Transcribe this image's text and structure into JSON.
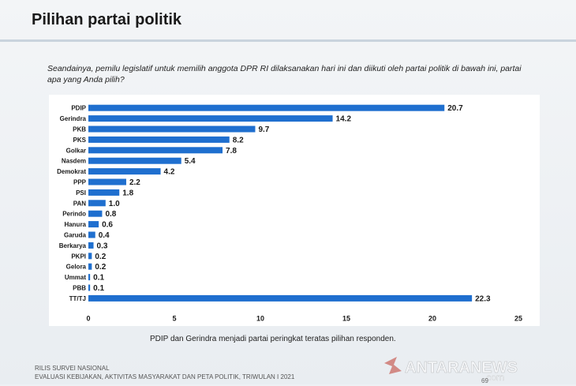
{
  "slide": {
    "title": "Pilihan partai politik",
    "question": "Seandainya, pemilu legislatif untuk memilih anggota DPR RI dilaksanakan hari ini dan diikuti oleh partai politik di bawah ini, partai apa yang Anda pilih?",
    "caption": "PDIP dan Gerindra menjadi partai peringkat teratas pilihan responden.",
    "footer_line1": "RILIS SURVEI NASIONAL",
    "footer_line2": "EVALUASI KEBIJAKAN, AKTIVITAS MASYARAKAT DAN PETA POLITIK, TRIWULAN I 2021",
    "watermark": "ANTARANEWS",
    "watermark_sub": ".com",
    "page_number": "69"
  },
  "colors": {
    "bar": "#1f6fcf",
    "text": "#1a1a1a"
  },
  "chart_data": {
    "type": "bar",
    "orientation": "horizontal",
    "categories": [
      "PDIP",
      "Gerindra",
      "PKB",
      "PKS",
      "Golkar",
      "Nasdem",
      "Demokrat",
      "PPP",
      "PSI",
      "PAN",
      "Perindo",
      "Hanura",
      "Garuda",
      "Berkarya",
      "PKPI",
      "Gelora",
      "Ummat",
      "PBB",
      "TT/TJ"
    ],
    "values": [
      20.7,
      14.2,
      9.7,
      8.2,
      7.8,
      5.4,
      4.2,
      2.2,
      1.8,
      1.0,
      0.8,
      0.6,
      0.4,
      0.3,
      0.2,
      0.2,
      0.1,
      0.1,
      22.3
    ],
    "value_labels": [
      "20.7",
      "14.2",
      "9.7",
      "8.2",
      "7.8",
      "5.4",
      "4.2",
      "2.2",
      "1.8",
      "1.0",
      "0.8",
      "0.6",
      "0.4",
      "0.3",
      "0.2",
      "0.2",
      "0.1",
      "0.1",
      "22.3"
    ],
    "xlim": [
      0,
      25
    ],
    "xticks": [
      "0",
      "5",
      "10",
      "15",
      "20",
      "25"
    ],
    "grid": false,
    "legend": "none"
  }
}
